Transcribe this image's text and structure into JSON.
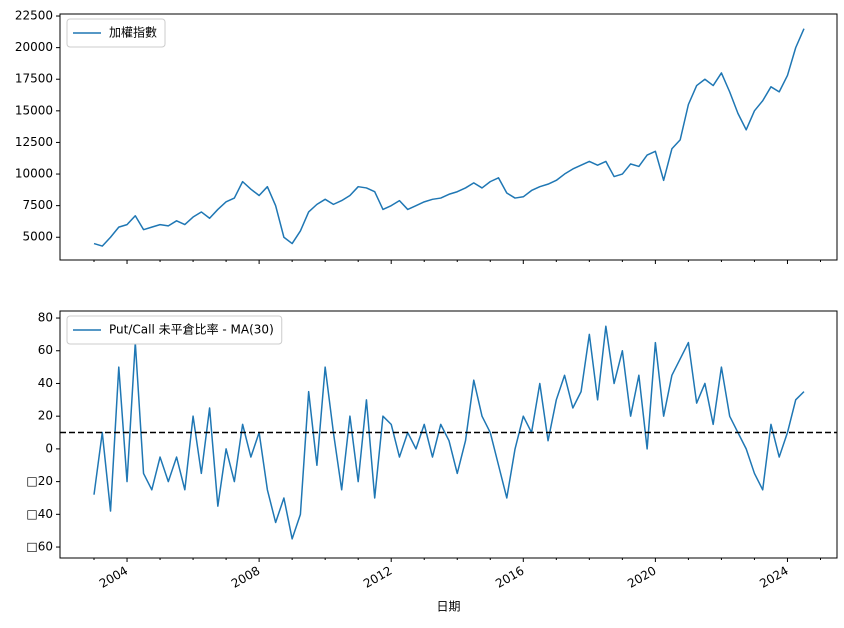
{
  "chart_data": [
    {
      "type": "line",
      "x": [
        2003,
        2003.25,
        2003.5,
        2003.75,
        2004,
        2004.25,
        2004.5,
        2004.75,
        2005,
        2005.25,
        2005.5,
        2005.75,
        2006,
        2006.25,
        2006.5,
        2006.75,
        2007,
        2007.25,
        2007.5,
        2007.75,
        2008,
        2008.25,
        2008.5,
        2008.75,
        2009,
        2009.25,
        2009.5,
        2009.75,
        2010,
        2010.25,
        2010.5,
        2010.75,
        2011,
        2011.25,
        2011.5,
        2011.75,
        2012,
        2012.25,
        2012.5,
        2012.75,
        2013,
        2013.25,
        2013.5,
        2013.75,
        2014,
        2014.25,
        2014.5,
        2014.75,
        2015,
        2015.25,
        2015.5,
        2015.75,
        2016,
        2016.25,
        2016.5,
        2016.75,
        2017,
        2017.25,
        2017.5,
        2017.75,
        2018,
        2018.25,
        2018.5,
        2018.75,
        2019,
        2019.25,
        2019.5,
        2019.75,
        2020,
        2020.25,
        2020.5,
        2020.75,
        2021,
        2021.25,
        2021.5,
        2021.75,
        2022,
        2022.25,
        2022.5,
        2022.75,
        2023,
        2023.25,
        2023.5,
        2023.75,
        2024,
        2024.25,
        2024.5
      ],
      "series": [
        {
          "name": "加權指數",
          "color": "#1f77b4",
          "values": [
            4500,
            4300,
            5000,
            5800,
            6000,
            6700,
            5600,
            5800,
            6000,
            5900,
            6300,
            6000,
            6600,
            7000,
            6500,
            7200,
            7800,
            8100,
            9400,
            8800,
            8300,
            9000,
            7500,
            5000,
            4500,
            5500,
            7000,
            7600,
            8000,
            7600,
            7900,
            8300,
            9000,
            8900,
            8600,
            7200,
            7500,
            7900,
            7200,
            7500,
            7800,
            8000,
            8100,
            8400,
            8600,
            8900,
            9300,
            8900,
            9400,
            9700,
            8500,
            8100,
            8200,
            8700,
            9000,
            9200,
            9500,
            10000,
            10400,
            10700,
            11000,
            10700,
            11000,
            9800,
            10000,
            10800,
            10600,
            11500,
            11800,
            9500,
            12000,
            12700,
            15500,
            17000,
            17500,
            17000,
            18000,
            16500,
            14800,
            13500,
            15000,
            15800,
            16900,
            16500,
            17800,
            20000,
            21500
          ]
        }
      ],
      "xlim": [
        2001.97,
        2025.5
      ],
      "xticks": [
        2004,
        2008,
        2012,
        2016,
        2020,
        2024
      ],
      "xminorticks": [
        2003,
        2005,
        2006,
        2007,
        2009,
        2010,
        2011,
        2013,
        2014,
        2015,
        2017,
        2018,
        2019,
        2021,
        2022,
        2023,
        2025
      ],
      "show_xticklabels": false,
      "ylim": [
        3200,
        22660
      ],
      "yticks": [
        5000,
        7500,
        10000,
        12500,
        15000,
        17500,
        20000,
        22500
      ],
      "legend": "upper left"
    },
    {
      "type": "line",
      "x": [
        2003,
        2003.25,
        2003.5,
        2003.75,
        2004,
        2004.25,
        2004.5,
        2004.75,
        2005,
        2005.25,
        2005.5,
        2005.75,
        2006,
        2006.25,
        2006.5,
        2006.75,
        2007,
        2007.25,
        2007.5,
        2007.75,
        2008,
        2008.25,
        2008.5,
        2008.75,
        2009,
        2009.25,
        2009.5,
        2009.75,
        2010,
        2010.25,
        2010.5,
        2010.75,
        2011,
        2011.25,
        2011.5,
        2011.75,
        2012,
        2012.25,
        2012.5,
        2012.75,
        2013,
        2013.25,
        2013.5,
        2013.75,
        2014,
        2014.25,
        2014.5,
        2014.75,
        2015,
        2015.25,
        2015.5,
        2015.75,
        2016,
        2016.25,
        2016.5,
        2016.75,
        2017,
        2017.25,
        2017.5,
        2017.75,
        2018,
        2018.25,
        2018.5,
        2018.75,
        2019,
        2019.25,
        2019.5,
        2019.75,
        2020,
        2020.25,
        2020.5,
        2020.75,
        2021,
        2021.25,
        2021.5,
        2021.75,
        2022,
        2022.25,
        2022.5,
        2022.75,
        2023,
        2023.25,
        2023.5,
        2023.75,
        2024,
        2024.25,
        2024.5
      ],
      "series": [
        {
          "name": "Put/Call 未平倉比率 - MA(30)",
          "color": "#1f77b4",
          "values": [
            -28,
            10,
            -38,
            50,
            -20,
            65,
            -15,
            -25,
            -5,
            -20,
            -5,
            -25,
            20,
            -15,
            25,
            -35,
            0,
            -20,
            15,
            -5,
            10,
            -25,
            -45,
            -30,
            -55,
            -40,
            35,
            -10,
            50,
            10,
            -25,
            20,
            -20,
            30,
            -30,
            20,
            15,
            -5,
            10,
            0,
            15,
            -5,
            15,
            5,
            -15,
            5,
            42,
            20,
            10,
            -10,
            -30,
            0,
            20,
            10,
            40,
            5,
            30,
            45,
            25,
            35,
            70,
            30,
            75,
            40,
            60,
            20,
            45,
            0,
            65,
            20,
            45,
            55,
            65,
            28,
            40,
            15,
            50,
            20,
            10,
            0,
            -15,
            -25,
            15,
            -5,
            10,
            30,
            35
          ]
        }
      ],
      "hline": {
        "value": 10,
        "color": "#000000",
        "style": "dashed"
      },
      "xlim": [
        2001.97,
        2025.5
      ],
      "xticks": [
        2004,
        2008,
        2012,
        2016,
        2020,
        2024
      ],
      "xminorticks": [
        2003,
        2005,
        2006,
        2007,
        2009,
        2010,
        2011,
        2013,
        2014,
        2015,
        2017,
        2018,
        2019,
        2021,
        2022,
        2023,
        2025
      ],
      "show_xticklabels": true,
      "xlabel": "日期",
      "ylim": [
        -66.7,
        84.3
      ],
      "yticks": [
        {
          "value": -60,
          "label": "□60"
        },
        {
          "value": -40,
          "label": "□40"
        },
        {
          "value": -20,
          "label": "□20"
        },
        0,
        20,
        40,
        60,
        80
      ],
      "legend": "upper left"
    }
  ]
}
